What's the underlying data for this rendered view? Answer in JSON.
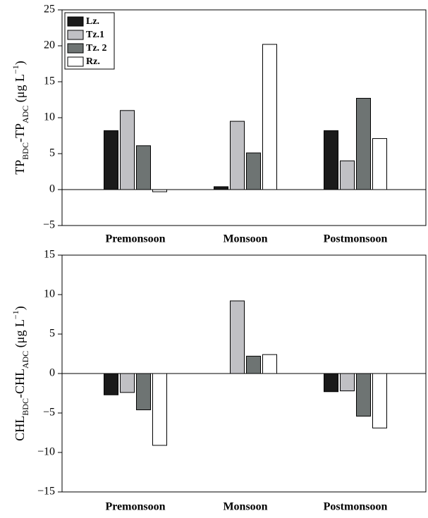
{
  "chart_data": [
    {
      "type": "bar",
      "y_label": [
        "TP",
        "BDC",
        "-TP",
        "ADC",
        " (μg L",
        "−1",
        ")"
      ],
      "categories": [
        "Premonsoon",
        "Monsoon",
        "Postmonsoon"
      ],
      "series": [
        {
          "name": "Lz.",
          "color": "#1a1a1a",
          "values": [
            8.2,
            0.4,
            8.2
          ]
        },
        {
          "name": "Tz.1",
          "color": "#c0c0c4",
          "values": [
            11,
            9.5,
            4.0
          ]
        },
        {
          "name": "Tz. 2",
          "color": "#6e7473",
          "values": [
            6.1,
            5.1,
            12.7
          ]
        },
        {
          "name": "Rz.",
          "color": "#ffffff",
          "values": [
            -0.3,
            20.2,
            7.1
          ]
        }
      ],
      "ylim": [
        -5,
        25
      ],
      "yticks": [
        {
          "value": -5,
          "label": "−5"
        },
        0,
        5,
        10,
        15,
        20,
        25
      ],
      "legend": "upper left"
    },
    {
      "type": "bar",
      "y_label": [
        "CHL",
        "BDC",
        "-CHL",
        "ADC",
        " (μg L",
        "−1",
        ")"
      ],
      "categories": [
        "Premonsoon",
        "Monsoon",
        "Postmonsoon"
      ],
      "series": [
        {
          "color": "#1a1a1a",
          "values": [
            -2.7,
            0,
            -2.3
          ]
        },
        {
          "color": "#c0c0c4",
          "values": [
            -2.4,
            9.2,
            -2.2
          ]
        },
        {
          "color": "#6e7473",
          "values": [
            -4.6,
            2.2,
            -5.4
          ]
        },
        {
          "color": "#ffffff",
          "values": [
            -9.1,
            2.4,
            -6.9
          ]
        }
      ],
      "ylim": [
        -15,
        15
      ],
      "yticks": [
        {
          "value": -15,
          "label": "−15"
        },
        {
          "value": -10,
          "label": "−10"
        },
        {
          "value": -5,
          "label": "−5"
        },
        0,
        5,
        10,
        15
      ]
    }
  ]
}
